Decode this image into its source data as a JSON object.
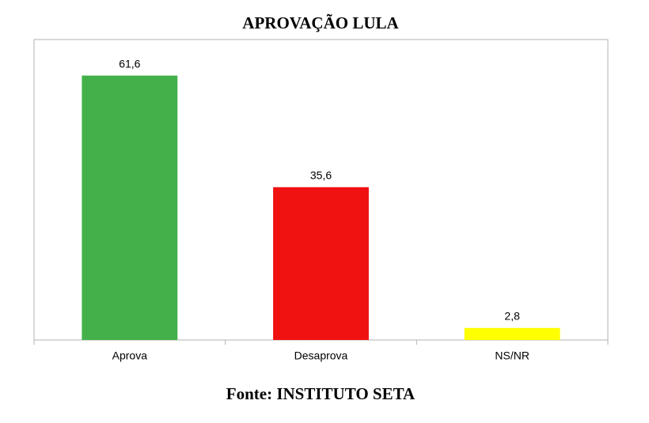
{
  "chart_data": {
    "type": "bar",
    "title": "APROVAÇÃO LULA",
    "source": "Fonte: INSTITUTO SETA",
    "categories": [
      "Aprova",
      "Desaprova",
      "NS/NR"
    ],
    "values": [
      61.6,
      35.6,
      2.8
    ],
    "value_labels": [
      "61,6",
      "35,6",
      "2,8"
    ],
    "colors": [
      "#43b049",
      "#f01111",
      "#ffff00"
    ],
    "ylim": [
      0,
      70
    ]
  }
}
